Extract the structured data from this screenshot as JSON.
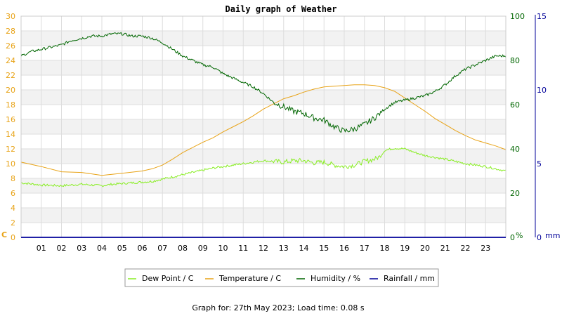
{
  "chart_data": {
    "type": "line",
    "title": "Daily graph of Weather",
    "footer": "Graph for: 27th May 2023; Load time: 0.08 s",
    "x_ticks": [
      "01",
      "02",
      "03",
      "04",
      "05",
      "06",
      "07",
      "08",
      "09",
      "10",
      "11",
      "12",
      "13",
      "14",
      "15",
      "16",
      "17",
      "18",
      "19",
      "20",
      "21",
      "22",
      "23"
    ],
    "xlim": [
      0,
      24
    ],
    "axes": {
      "left": {
        "unit": "C",
        "ticks": [
          "0",
          "2",
          "4",
          "6",
          "8",
          "10",
          "12",
          "14",
          "16",
          "18",
          "20",
          "22",
          "24",
          "26",
          "28",
          "30"
        ],
        "ylim": [
          0,
          30
        ],
        "color": "#e8a317"
      },
      "right1": {
        "unit": "%",
        "ticks": [
          "0",
          "20",
          "40",
          "60",
          "80",
          "100"
        ],
        "ylim": [
          0,
          100
        ],
        "color": "#006600"
      },
      "right2": {
        "unit": "mm",
        "ticks": [
          "0",
          "5",
          "10",
          "15"
        ],
        "ylim": [
          0,
          15
        ],
        "color": "#000099"
      }
    },
    "grid": true,
    "legend_position": "bottom",
    "series": [
      {
        "name": "Dew Point / C",
        "axis": "left",
        "color": "#88ee22",
        "noise": 0.15,
        "x": [
          0,
          1,
          2,
          3,
          3.5,
          4,
          4.5,
          5,
          6,
          6.5,
          7,
          7.5,
          8,
          8.5,
          9,
          9.5,
          10,
          10.5,
          11,
          11.5,
          12,
          12.5,
          13,
          13.5,
          14,
          14.5,
          15,
          15.5,
          16,
          16.5,
          17,
          17.5,
          17.8,
          18,
          18.5,
          19,
          19.5,
          20,
          21,
          22,
          23,
          24
        ],
        "y": [
          7.4,
          7.1,
          7.0,
          7.2,
          7.1,
          7.0,
          7.2,
          7.3,
          7.5,
          7.6,
          7.9,
          8.2,
          8.5,
          8.8,
          9.1,
          9.4,
          9.6,
          9.8,
          10.0,
          10.2,
          10.4,
          10.3,
          10.2,
          10.4,
          10.4,
          10.1,
          10.2,
          9.8,
          9.6,
          9.8,
          10.3,
          10.6,
          11.0,
          11.8,
          12.1,
          12.0,
          11.5,
          11.1,
          10.6,
          10.0,
          9.6,
          9.0
        ]
      },
      {
        "name": "Temperature / C",
        "axis": "left",
        "color": "#e8a317",
        "noise": 0,
        "x": [
          0,
          1,
          2,
          3,
          4,
          5,
          6,
          6.5,
          7,
          7.5,
          8,
          8.5,
          9,
          9.5,
          10,
          10.5,
          11,
          11.5,
          12,
          12.5,
          13,
          13.5,
          14,
          14.5,
          15,
          15.5,
          16,
          16.5,
          17,
          17.5,
          18,
          18.5,
          19,
          19.5,
          20,
          20.5,
          21,
          21.5,
          22,
          22.5,
          23,
          23.5,
          24
        ],
        "y": [
          10.2,
          9.6,
          8.9,
          8.8,
          8.4,
          8.7,
          9.0,
          9.3,
          9.8,
          10.6,
          11.5,
          12.2,
          12.9,
          13.5,
          14.3,
          15.0,
          15.7,
          16.5,
          17.4,
          18.1,
          18.8,
          19.2,
          19.7,
          20.1,
          20.4,
          20.5,
          20.6,
          20.7,
          20.7,
          20.6,
          20.3,
          19.8,
          18.9,
          18.0,
          17.1,
          16.1,
          15.3,
          14.5,
          13.8,
          13.2,
          12.8,
          12.4,
          11.9
        ]
      },
      {
        "name": "Humidity / %",
        "axis": "right1",
        "color": "#006600",
        "noise": 0.6,
        "x": [
          0,
          0.5,
          1,
          1.5,
          2,
          2.5,
          3,
          3.5,
          4,
          4.5,
          5,
          5.5,
          6,
          6.5,
          7,
          7.5,
          8,
          8.5,
          9,
          9.5,
          10,
          10.5,
          11,
          11.5,
          12,
          12.5,
          13,
          13.5,
          14,
          14.5,
          15,
          15.5,
          16,
          16.5,
          17,
          17.5,
          18,
          18.5,
          19,
          19.5,
          20,
          20.5,
          21,
          21.5,
          22,
          22.5,
          23,
          23.5,
          24
        ],
        "y": [
          82,
          84,
          85,
          86,
          87,
          89,
          90,
          91,
          91,
          92,
          92,
          91,
          91,
          90,
          88,
          85,
          82,
          80,
          78,
          77,
          74,
          72,
          70,
          68,
          65,
          61,
          59,
          57,
          56,
          54,
          53,
          50,
          48,
          49,
          51,
          54,
          58,
          61,
          62,
          63,
          64,
          66,
          69,
          73,
          76,
          78,
          80,
          82,
          82
        ]
      },
      {
        "name": "Rainfall / mm",
        "axis": "right2",
        "color": "#000099",
        "noise": 0,
        "x": [
          0,
          24
        ],
        "y": [
          0,
          0
        ]
      }
    ]
  }
}
